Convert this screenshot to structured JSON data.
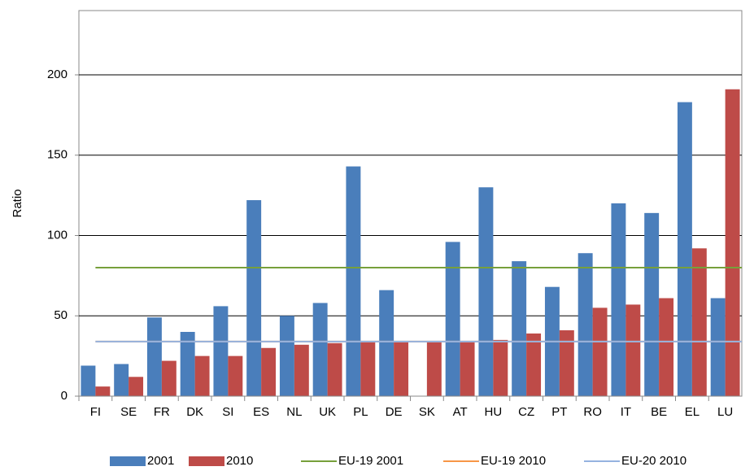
{
  "chart_data": {
    "type": "bar",
    "y_label": "Ratio",
    "categories": [
      "FI",
      "SE",
      "FR",
      "DK",
      "SI",
      "ES",
      "NL",
      "UK",
      "PL",
      "DE",
      "SK",
      "AT",
      "HU",
      "CZ",
      "PT",
      "RO",
      "IT",
      "BE",
      "EL",
      "LU"
    ],
    "series": [
      {
        "name": "2001",
        "color": "#4a7ebb",
        "values": [
          19,
          20,
          49,
          40,
          56,
          122,
          50,
          58,
          143,
          66,
          null,
          96,
          130,
          84,
          68,
          89,
          120,
          114,
          183,
          61
        ]
      },
      {
        "name": "2010",
        "color": "#be4b48",
        "values": [
          6,
          12,
          22,
          25,
          25,
          30,
          32,
          33,
          34,
          34,
          34,
          34,
          35,
          39,
          41,
          55,
          57,
          61,
          92,
          191
        ]
      }
    ],
    "reference_lines": [
      {
        "name": "EU-19 2001",
        "color": "#77a03b",
        "value": 80
      },
      {
        "name": "EU-19 2010",
        "color": "#f79646",
        "value": 34
      },
      {
        "name": "EU-20 2010",
        "color": "#95b3e0",
        "value": 34
      }
    ],
    "ylim": [
      0,
      240
    ],
    "yticks": [
      0,
      50,
      100,
      150,
      200
    ],
    "grid": true
  }
}
